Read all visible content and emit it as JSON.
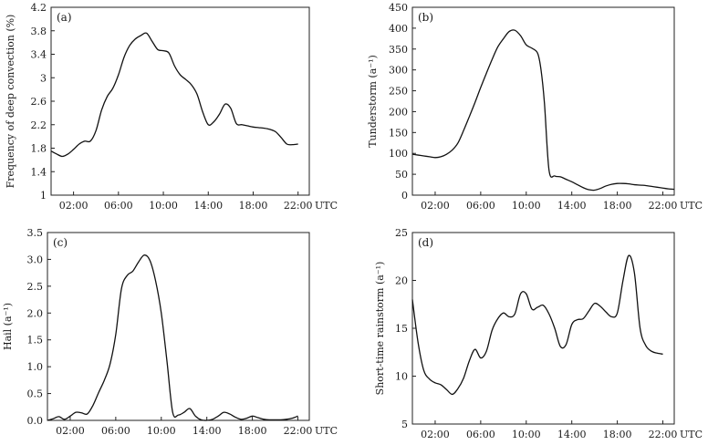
{
  "chart_data": [
    {
      "type": "line",
      "panel": "(a)",
      "ylabel": "Frequency of deep convection (%)",
      "xlabel": "UTC",
      "xlim": [
        0,
        23
      ],
      "ylim": [
        1,
        4.2
      ],
      "yticks": [
        1,
        1.4,
        1.8,
        2.2,
        2.6,
        3,
        3.4,
        3.8,
        4.2
      ],
      "ytick_labels": [
        "1",
        "1.4",
        "1.8",
        "2.2",
        "2.6",
        "3",
        "3.4",
        "3.8",
        "4.2"
      ],
      "xticks": [
        2,
        6,
        10,
        14,
        18,
        22
      ],
      "xtick_labels": [
        "02:00",
        "06:00",
        "10:00",
        "14:00",
        "18:00",
        "22:00"
      ],
      "grid": false,
      "x": [
        0,
        0.5,
        1,
        1.5,
        2,
        2.5,
        3,
        3.5,
        4,
        4.5,
        5,
        5.5,
        6,
        6.5,
        7,
        7.5,
        8,
        8.5,
        9,
        9.5,
        10,
        10.5,
        11,
        11.5,
        12,
        12.5,
        13,
        13.5,
        14,
        14.5,
        15,
        15.5,
        16,
        16.5,
        17,
        17.5,
        18,
        18.5,
        19,
        19.5,
        20,
        20.5,
        21,
        21.5,
        22
      ],
      "y": [
        1.75,
        1.7,
        1.66,
        1.7,
        1.78,
        1.87,
        1.92,
        1.92,
        2.1,
        2.45,
        2.68,
        2.82,
        3.05,
        3.35,
        3.55,
        3.66,
        3.72,
        3.76,
        3.62,
        3.48,
        3.46,
        3.42,
        3.2,
        3.05,
        2.97,
        2.88,
        2.72,
        2.42,
        2.2,
        2.25,
        2.38,
        2.55,
        2.48,
        2.22,
        2.2,
        2.18,
        2.16,
        2.15,
        2.14,
        2.12,
        2.08,
        1.98,
        1.87,
        1.86,
        1.87
      ]
    },
    {
      "type": "line",
      "panel": "(b)",
      "ylabel": "Tunderstorm (a⁻¹)",
      "xlabel": "UTC",
      "xlim": [
        0,
        23
      ],
      "ylim": [
        0,
        450
      ],
      "yticks": [
        0,
        50,
        100,
        150,
        200,
        250,
        300,
        350,
        400,
        450
      ],
      "ytick_labels": [
        "0",
        "50",
        "100",
        "150",
        "200",
        "250",
        "300",
        "350",
        "400",
        "450"
      ],
      "xticks": [
        2,
        6,
        10,
        14,
        18,
        22
      ],
      "xtick_labels": [
        "02:00",
        "06:00",
        "10:00",
        "14:00",
        "18:00",
        "22:00"
      ],
      "grid": false,
      "x": [
        0,
        0.5,
        1,
        1.5,
        2,
        2.5,
        3,
        3.5,
        4,
        4.5,
        5,
        5.5,
        6,
        6.5,
        7,
        7.5,
        8,
        8.5,
        9,
        9.5,
        10,
        10.5,
        11,
        11.3,
        11.6,
        12,
        12.5,
        13,
        13.5,
        14,
        14.5,
        15,
        15.5,
        16,
        16.5,
        17,
        17.5,
        18,
        18.5,
        19,
        19.5,
        20,
        20.5,
        21,
        21.5,
        22,
        22.5,
        23
      ],
      "y": [
        98,
        96,
        94,
        92,
        90,
        92,
        98,
        108,
        125,
        155,
        188,
        222,
        258,
        292,
        325,
        355,
        375,
        392,
        395,
        382,
        360,
        352,
        340,
        300,
        220,
        60,
        46,
        44,
        38,
        32,
        25,
        18,
        13,
        12,
        16,
        22,
        26,
        28,
        28,
        27,
        25,
        24,
        23,
        21,
        19,
        17,
        15,
        14
      ]
    },
    {
      "type": "line",
      "panel": "(c)",
      "ylabel": "Hail (a⁻¹)",
      "xlabel": "UTC",
      "xlim": [
        0,
        23
      ],
      "ylim": [
        0,
        3.5
      ],
      "yticks": [
        0,
        0.5,
        1,
        1.5,
        2,
        2.5,
        3,
        3.5
      ],
      "ytick_labels": [
        "0.0",
        "0.5",
        "1.0",
        "1.5",
        "2.0",
        "2.5",
        "3.0",
        "3.5"
      ],
      "xticks": [
        2,
        6,
        10,
        14,
        18,
        22
      ],
      "xtick_labels": [
        "02:00",
        "06:00",
        "10:00",
        "14:00",
        "18:00",
        "22:00"
      ],
      "grid": false,
      "x": [
        0,
        0.5,
        1,
        1.5,
        2,
        2.5,
        3,
        3.5,
        4,
        4.5,
        5,
        5.5,
        6,
        6.5,
        7,
        7.5,
        8,
        8.5,
        9,
        9.5,
        10,
        10.5,
        11,
        11.5,
        12,
        12.5,
        13,
        13.5,
        14,
        14.5,
        15,
        15.5,
        16,
        16.5,
        17,
        17.5,
        18,
        18.5,
        19,
        19.5,
        20,
        20.5,
        21,
        21.5,
        22
      ],
      "y": [
        0,
        0.03,
        0.07,
        0.02,
        0.08,
        0.15,
        0.14,
        0.12,
        0.28,
        0.52,
        0.75,
        1.05,
        1.6,
        2.45,
        2.7,
        2.78,
        2.95,
        3.08,
        2.98,
        2.6,
        2.0,
        1.1,
        0.15,
        0.1,
        0.15,
        0.22,
        0.08,
        0.01,
        0.0,
        0.02,
        0.08,
        0.15,
        0.12,
        0.06,
        0.02,
        0.04,
        0.08,
        0.05,
        0.02,
        0.01,
        0.01,
        0.01,
        0.02,
        0.04,
        0.08
      ]
    },
    {
      "type": "line",
      "panel": "(d)",
      "ylabel": "Short-time rainstorm (a⁻¹)",
      "xlabel": "UTC",
      "xlim": [
        0,
        23
      ],
      "ylim": [
        5,
        25
      ],
      "yticks": [
        5,
        10,
        15,
        20,
        25
      ],
      "ytick_labels": [
        "5",
        "10",
        "15",
        "20",
        "25"
      ],
      "xticks": [
        2,
        6,
        10,
        14,
        18,
        22
      ],
      "xtick_labels": [
        "02:00",
        "06:00",
        "10:00",
        "14:00",
        "18:00",
        "22:00"
      ],
      "grid": false,
      "x": [
        0,
        0.5,
        1,
        1.5,
        2,
        2.5,
        3,
        3.5,
        4,
        4.5,
        5,
        5.5,
        6,
        6.5,
        7,
        7.5,
        8,
        8.5,
        9,
        9.5,
        10,
        10.5,
        11,
        11.5,
        12,
        12.5,
        13,
        13.5,
        14,
        14.5,
        15,
        15.5,
        16,
        16.5,
        17,
        17.5,
        18,
        18.5,
        19,
        19.5,
        20,
        20.5,
        21,
        21.5,
        22
      ],
      "y": [
        18,
        13.5,
        10.6,
        9.7,
        9.3,
        9.1,
        8.6,
        8.1,
        8.7,
        9.8,
        11.6,
        12.8,
        11.9,
        12.6,
        14.8,
        16.0,
        16.6,
        16.2,
        16.5,
        18.6,
        18.6,
        17.0,
        17.2,
        17.4,
        16.5,
        15.0,
        13.1,
        13.3,
        15.4,
        15.9,
        16.0,
        16.8,
        17.6,
        17.3,
        16.7,
        16.2,
        16.6,
        20.0,
        22.6,
        20.8,
        15.0,
        13.2,
        12.6,
        12.4,
        12.3
      ]
    }
  ]
}
